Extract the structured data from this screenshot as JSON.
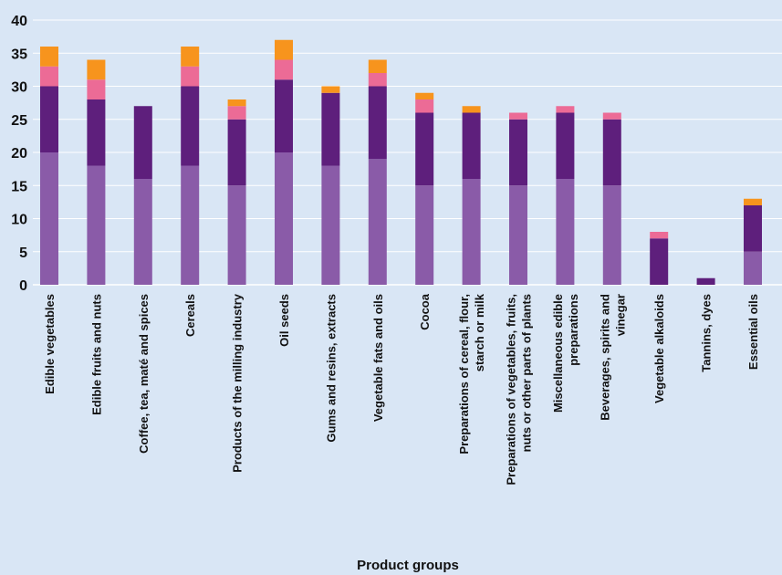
{
  "chart_data": {
    "type": "bar",
    "stacked": true,
    "xlabel": "Product groups",
    "ylabel": "",
    "ylim": [
      0,
      40
    ],
    "yticks": [
      0,
      5,
      10,
      15,
      20,
      25,
      30,
      35,
      40
    ],
    "grid": true,
    "legend": "none",
    "categories": [
      [
        "Edible vegetables"
      ],
      [
        "Edible fruits and nuts"
      ],
      [
        "Coffee, tea, maté and spices"
      ],
      [
        "Cereals"
      ],
      [
        "Products of the milling industry"
      ],
      [
        "Oil seeds"
      ],
      [
        "Gums and resins, extracts"
      ],
      [
        "Vegetable fats and oils"
      ],
      [
        "Cocoa"
      ],
      [
        "Preparations of cereal, flour,",
        "starch or milk"
      ],
      [
        "Preparations of vegetables, fruits,",
        "nuts or other parts of  plants"
      ],
      [
        "Miscellaneous edible",
        "preparations"
      ],
      [
        "Beverages, spirits and",
        "vinegar"
      ],
      [
        "Vegetable alkaloids"
      ],
      [
        "Tannins, dyes"
      ],
      [
        "Essential oils"
      ]
    ],
    "series": [
      {
        "color": "#8a5ba8",
        "values": [
          20,
          18,
          16,
          18,
          15,
          20,
          18,
          19,
          15,
          16,
          15,
          16,
          15,
          0,
          0,
          5
        ]
      },
      {
        "color": "#5e1f7c",
        "values": [
          10,
          10,
          11,
          12,
          10,
          11,
          11,
          11,
          11,
          10,
          10,
          10,
          10,
          7,
          1,
          7
        ]
      },
      {
        "color": "#ec6b96",
        "values": [
          3,
          3,
          0,
          3,
          2,
          3,
          0,
          2,
          2,
          0,
          1,
          1,
          1,
          1,
          0,
          0
        ]
      },
      {
        "color": "#f7941d",
        "values": [
          3,
          3,
          0,
          3,
          1,
          3,
          1,
          2,
          1,
          1,
          0,
          0,
          0,
          0,
          0,
          1
        ]
      }
    ]
  }
}
